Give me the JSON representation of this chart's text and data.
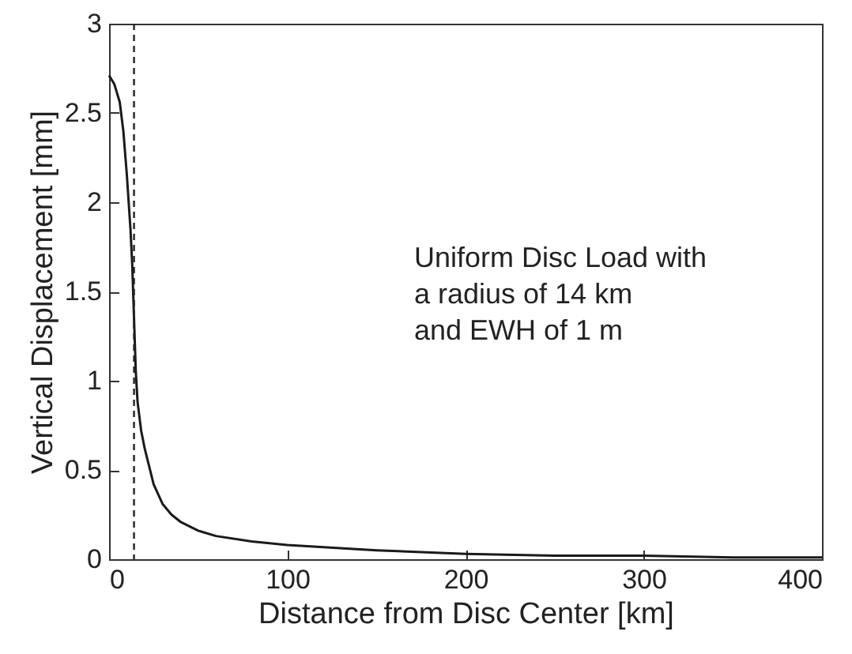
{
  "chart_data": {
    "type": "line",
    "xlabel": "Distance from Disc Center [km]",
    "ylabel": "Vertical Displacement [mm]",
    "x": [
      0,
      3,
      6,
      8,
      10,
      12,
      13,
      14,
      15,
      16,
      18,
      20,
      25,
      30,
      35,
      40,
      50,
      60,
      80,
      100,
      150,
      200,
      250,
      300,
      350,
      400
    ],
    "series": [
      {
        "color": "#1a1a1a",
        "values": [
          2.71,
          2.66,
          2.56,
          2.4,
          2.15,
          1.85,
          1.65,
          1.35,
          1.05,
          0.88,
          0.72,
          0.62,
          0.42,
          0.31,
          0.25,
          0.21,
          0.16,
          0.13,
          0.1,
          0.08,
          0.05,
          0.03,
          0.02,
          0.02,
          0.01,
          0.01
        ]
      }
    ],
    "xlim": [
      0,
      400
    ],
    "xticks": [
      0,
      100,
      200,
      300,
      400
    ],
    "ylim": [
      0,
      3
    ],
    "yticks": [
      0,
      0.5,
      1,
      1.5,
      2,
      2.5,
      3
    ],
    "ref_lines": [
      {
        "axis": "x",
        "value": 14,
        "line_style": "dashed"
      }
    ],
    "annotations": [
      "Uniform Disc Load with\na radius of 14 km\nand EWH of 1 m"
    ],
    "grid": false,
    "marker": "none",
    "line_style": "solid"
  }
}
